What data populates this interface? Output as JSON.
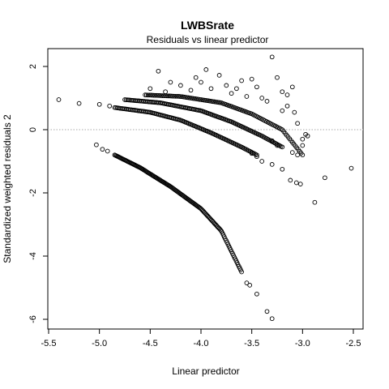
{
  "chart_data": {
    "type": "scatter",
    "title": "LWBSrate",
    "subtitle": "Residuals vs linear predictor",
    "xlabel": "Linear predictor",
    "ylabel": "Standardized weighted residuals 2",
    "xlim": [
      -5.5,
      -2.5
    ],
    "ylim": [
      -6.2,
      2.5
    ],
    "xticks": [
      -5.5,
      -5.0,
      -4.5,
      -4.0,
      -3.5,
      -3.0,
      -2.5
    ],
    "xtick_labels": [
      "-5.5",
      "-5.0",
      "-4.5",
      "-4.0",
      "-3.5",
      "-3.0",
      "-2.5"
    ],
    "yticks": [
      -6,
      -4,
      -2,
      0,
      2
    ],
    "ytick_labels": [
      "-6",
      "-4",
      "-2",
      "0",
      "2"
    ],
    "reference_line": {
      "y": 0,
      "style": "dotted",
      "color": "#aaaaaa"
    },
    "grid": false,
    "marker": "open-circle",
    "series_curves": [
      {
        "band": "lowest",
        "x_range": [
          -4.85,
          -3.6
        ],
        "points": [
          [
            -4.85,
            -0.8
          ],
          [
            -4.6,
            -1.2
          ],
          [
            -4.3,
            -1.8
          ],
          [
            -4.0,
            -2.5
          ],
          [
            -3.8,
            -3.2
          ],
          [
            -3.6,
            -4.5
          ]
        ],
        "count": 140
      },
      {
        "band": "second",
        "x_range": [
          -4.85,
          -3.45
        ],
        "points": [
          [
            -4.85,
            0.7
          ],
          [
            -4.5,
            0.55
          ],
          [
            -4.2,
            0.3
          ],
          [
            -3.9,
            -0.1
          ],
          [
            -3.6,
            -0.55
          ],
          [
            -3.45,
            -0.8
          ]
        ],
        "count": 110
      },
      {
        "band": "third",
        "x_range": [
          -4.75,
          -3.2
        ],
        "points": [
          [
            -4.75,
            0.95
          ],
          [
            -4.4,
            0.85
          ],
          [
            -4.0,
            0.6
          ],
          [
            -3.7,
            0.25
          ],
          [
            -3.4,
            -0.2
          ],
          [
            -3.2,
            -0.55
          ]
        ],
        "count": 120
      },
      {
        "band": "fourth",
        "x_range": [
          -4.55,
          -3.0
        ],
        "points": [
          [
            -4.55,
            1.1
          ],
          [
            -4.2,
            1.05
          ],
          [
            -3.8,
            0.85
          ],
          [
            -3.5,
            0.5
          ],
          [
            -3.2,
            0.0
          ],
          [
            -3.0,
            -0.8
          ]
        ],
        "count": 110
      }
    ],
    "scatter_points": [
      [
        -5.4,
        0.95
      ],
      [
        -5.2,
        0.83
      ],
      [
        -5.0,
        0.8
      ],
      [
        -4.9,
        0.75
      ],
      [
        -5.03,
        -0.48
      ],
      [
        -4.97,
        -0.62
      ],
      [
        -4.92,
        -0.68
      ],
      [
        -4.42,
        1.85
      ],
      [
        -4.3,
        1.5
      ],
      [
        -4.05,
        1.65
      ],
      [
        -3.95,
        1.9
      ],
      [
        -3.82,
        1.72
      ],
      [
        -3.75,
        1.4
      ],
      [
        -3.65,
        1.3
      ],
      [
        -3.6,
        1.55
      ],
      [
        -3.5,
        1.6
      ],
      [
        -3.45,
        1.35
      ],
      [
        -3.3,
        2.3
      ],
      [
        -3.25,
        1.65
      ],
      [
        -3.2,
        1.2
      ],
      [
        -3.15,
        1.1
      ],
      [
        -3.1,
        1.35
      ],
      [
        -4.5,
        1.3
      ],
      [
        -4.35,
        1.2
      ],
      [
        -4.2,
        1.4
      ],
      [
        -4.1,
        1.25
      ],
      [
        -4.0,
        1.5
      ],
      [
        -3.9,
        1.3
      ],
      [
        -3.7,
        1.15
      ],
      [
        -3.55,
        1.05
      ],
      [
        -3.4,
        1.0
      ],
      [
        -3.35,
        0.9
      ],
      [
        -3.2,
        0.6
      ],
      [
        -3.15,
        0.75
      ],
      [
        -3.08,
        0.55
      ],
      [
        -3.05,
        0.2
      ],
      [
        -3.0,
        -0.3
      ],
      [
        -2.97,
        -0.15
      ],
      [
        -2.95,
        -0.2
      ],
      [
        -3.3,
        -0.35
      ],
      [
        -3.25,
        -0.5
      ],
      [
        -3.1,
        -0.72
      ],
      [
        -3.05,
        -0.8
      ],
      [
        -3.0,
        -0.5
      ],
      [
        -3.5,
        -0.75
      ],
      [
        -3.45,
        -0.85
      ],
      [
        -3.4,
        -1.0
      ],
      [
        -3.3,
        -1.1
      ],
      [
        -3.2,
        -1.25
      ],
      [
        -3.12,
        -1.6
      ],
      [
        -3.06,
        -1.68
      ],
      [
        -3.02,
        -1.72
      ],
      [
        -2.88,
        -2.3
      ],
      [
        -2.78,
        -1.52
      ],
      [
        -2.52,
        -1.22
      ],
      [
        -3.55,
        -4.85
      ],
      [
        -3.52,
        -4.92
      ],
      [
        -3.45,
        -5.2
      ],
      [
        -3.35,
        -5.75
      ],
      [
        -3.3,
        -5.98
      ]
    ]
  }
}
